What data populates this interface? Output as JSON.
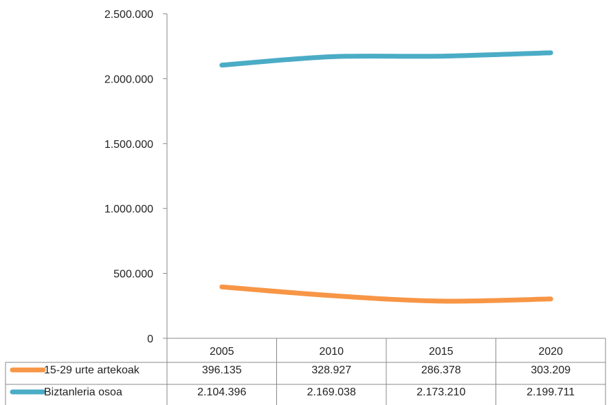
{
  "chart_data": {
    "type": "line",
    "categories": [
      "2005",
      "2010",
      "2015",
      "2020"
    ],
    "series": [
      {
        "name": "15-29 urte artekoak",
        "color": "#F79646",
        "values": [
          396135,
          328927,
          286378,
          303209
        ],
        "labels": [
          "396.135",
          "328.927",
          "286.378",
          "303.209"
        ]
      },
      {
        "name": "Biztanleria osoa",
        "color": "#4BACC6",
        "values": [
          2104396,
          2169038,
          2173210,
          2199711
        ],
        "labels": [
          "2.104.396",
          "2.169.038",
          "2.173.210",
          "2.199.711"
        ]
      }
    ],
    "y_ticks": [
      0,
      500000,
      1000000,
      1500000,
      2000000,
      2500000
    ],
    "y_tick_labels": [
      "0",
      "500.000",
      "1.000.000",
      "1.500.000",
      "2.000.000",
      "2.500.000"
    ],
    "ylim": [
      0,
      2500000
    ],
    "grid": false,
    "legend": "data-table"
  }
}
